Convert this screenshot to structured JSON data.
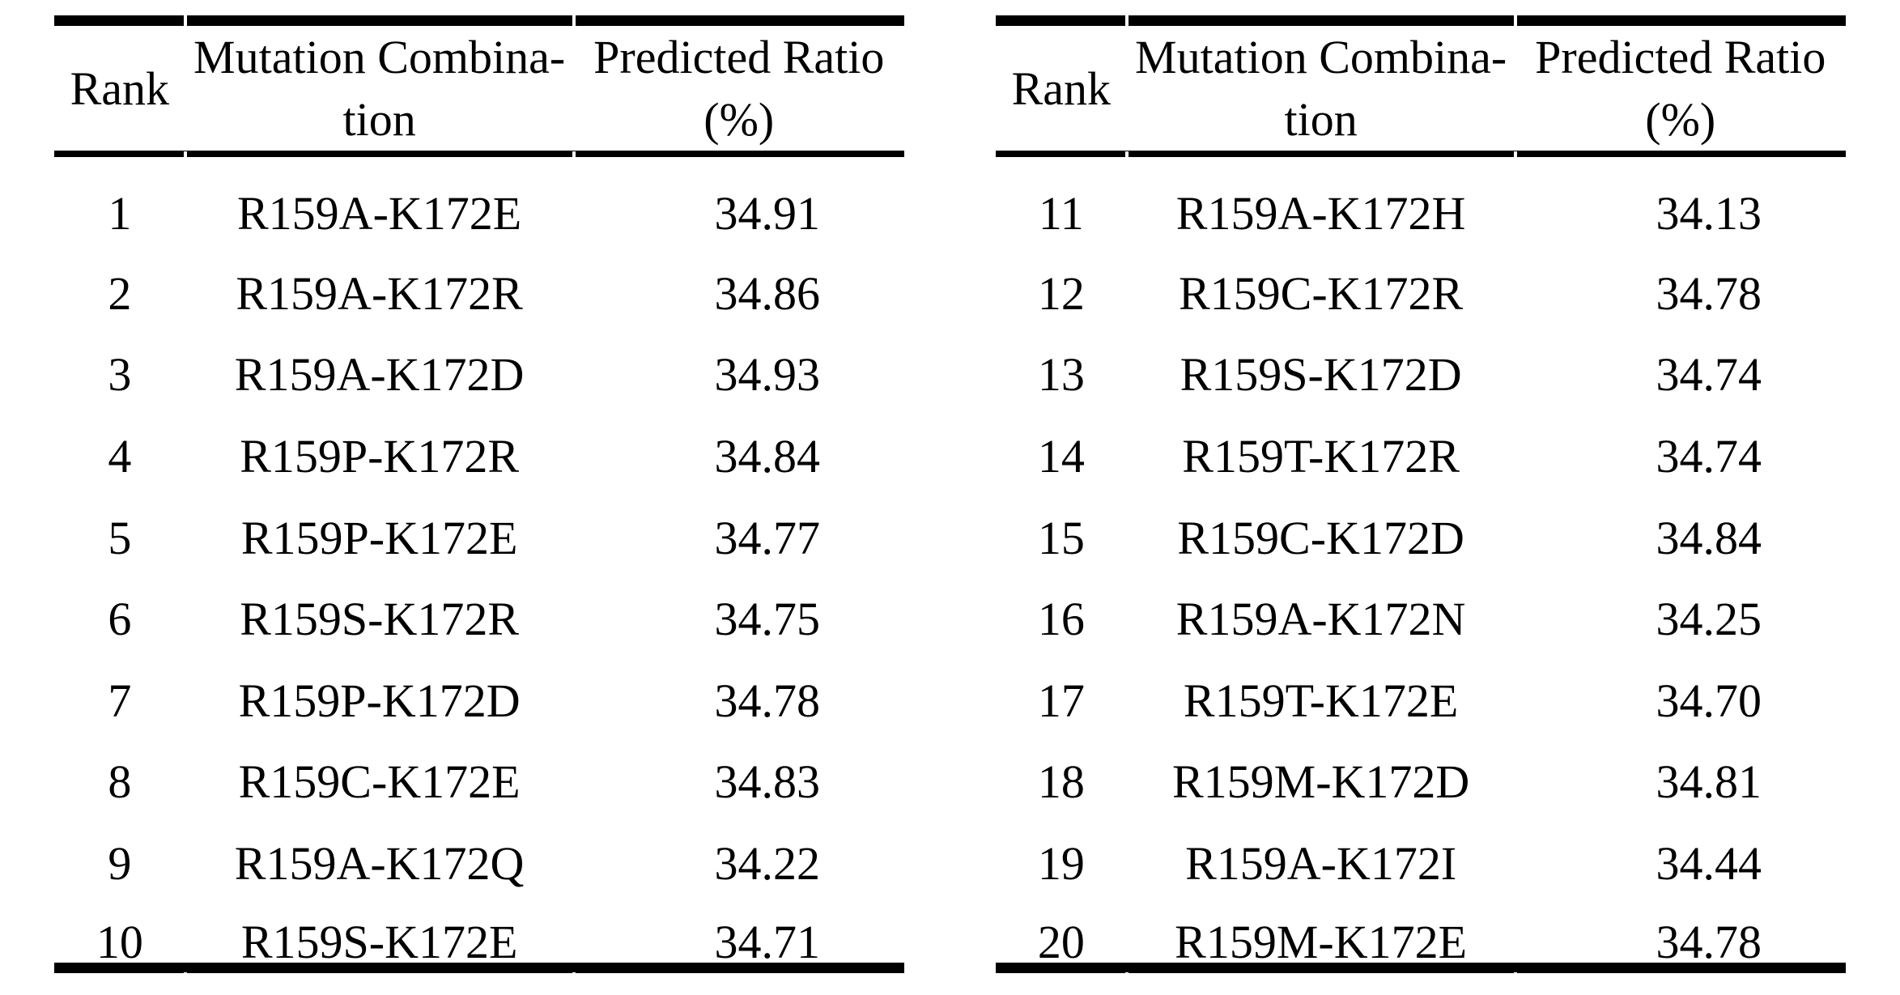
{
  "page": {
    "background": "#ffffff",
    "text_color": "#000000",
    "rule_color": "#000000"
  },
  "tables": [
    {
      "name": "ranking-table-left",
      "headers": {
        "rank": "Rank",
        "mutation": "Mutation Combina-\ntion",
        "ratio": "Predicted Ratio\n(%)"
      },
      "rows": [
        [
          "1",
          "R159A-K172E",
          "34.91"
        ],
        [
          "2",
          "R159A-K172R",
          "34.86"
        ],
        [
          "3",
          "R159A-K172D",
          "34.93"
        ],
        [
          "4",
          "R159P-K172R",
          "34.84"
        ],
        [
          "5",
          "R159P-K172E",
          "34.77"
        ],
        [
          "6",
          "R159S-K172R",
          "34.75"
        ],
        [
          "7",
          "R159P-K172D",
          "34.78"
        ],
        [
          "8",
          "R159C-K172E",
          "34.83"
        ],
        [
          "9",
          "R159A-K172Q",
          "34.22"
        ],
        [
          "10",
          "R159S-K172E",
          "34.71"
        ]
      ]
    },
    {
      "name": "ranking-table-right",
      "headers": {
        "rank": "Rank",
        "mutation": "Mutation Combina-\ntion",
        "ratio": "Predicted Ratio\n(%)"
      },
      "rows": [
        [
          "11",
          "R159A-K172H",
          "34.13"
        ],
        [
          "12",
          "R159C-K172R",
          "34.78"
        ],
        [
          "13",
          "R159S-K172D",
          "34.74"
        ],
        [
          "14",
          "R159T-K172R",
          "34.74"
        ],
        [
          "15",
          "R159C-K172D",
          "34.84"
        ],
        [
          "16",
          "R159A-K172N",
          "34.25"
        ],
        [
          "17",
          "R159T-K172E",
          "34.70"
        ],
        [
          "18",
          "R159M-K172D",
          "34.81"
        ],
        [
          "19",
          "R159A-K172I",
          "34.44"
        ],
        [
          "20",
          "R159M-K172E",
          "34.78"
        ]
      ]
    }
  ]
}
